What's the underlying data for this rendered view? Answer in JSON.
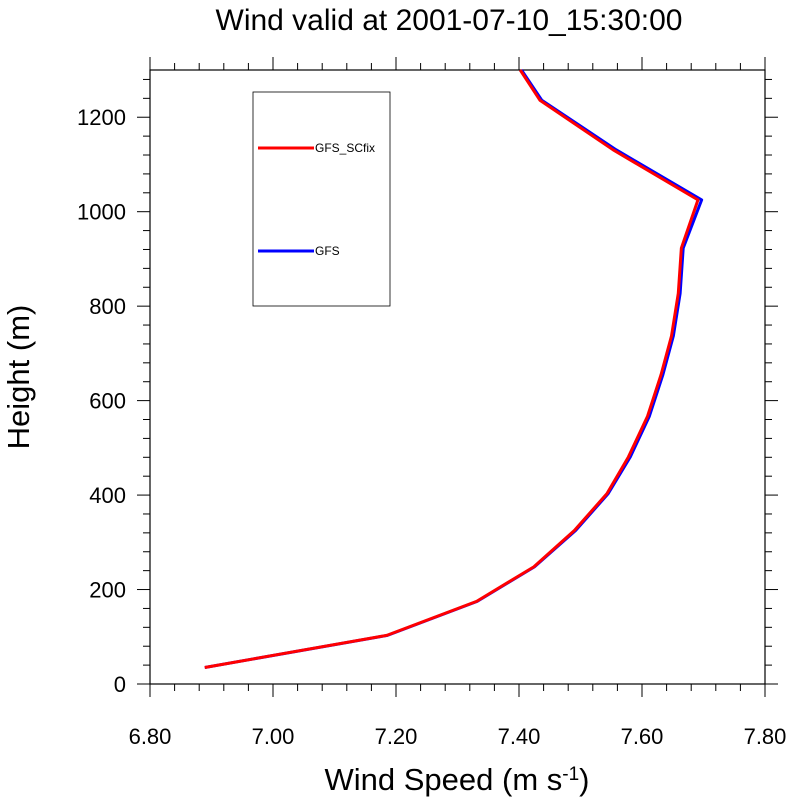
{
  "chart_data": {
    "type": "line",
    "title": "Wind valid at 2001-07-10_15:30:00",
    "xlabel": "Wind Speed (m s",
    "xlabel_superscript": "-1",
    "xlabel_suffix": ")",
    "ylabel": "Height (m)",
    "xlim": [
      6.8,
      7.8
    ],
    "ylim": [
      0,
      1300
    ],
    "x_ticks": [
      6.8,
      7.0,
      7.2,
      7.4,
      7.6,
      7.8
    ],
    "x_tick_labels": [
      "6.80",
      "7.00",
      "7.20",
      "7.40",
      "7.60",
      "7.80"
    ],
    "y_ticks": [
      0,
      200,
      400,
      600,
      800,
      1000,
      1200
    ],
    "y_tick_labels": [
      "0",
      "200",
      "400",
      "600",
      "800",
      "1000",
      "1200"
    ],
    "grid": false,
    "legend_placement": "top-left inside plot",
    "series": [
      {
        "name": "GFS",
        "color": "#0000ff",
        "points": [
          [
            6.889,
            35
          ],
          [
            7.186,
            103
          ],
          [
            7.332,
            175
          ],
          [
            7.425,
            248
          ],
          [
            7.492,
            325
          ],
          [
            7.545,
            403
          ],
          [
            7.581,
            481
          ],
          [
            7.612,
            567
          ],
          [
            7.634,
            655
          ],
          [
            7.651,
            737
          ],
          [
            7.662,
            827
          ],
          [
            7.667,
            923
          ],
          [
            7.697,
            1025
          ],
          [
            7.558,
            1131
          ],
          [
            7.437,
            1236
          ],
          [
            7.404,
            1300
          ]
        ]
      },
      {
        "name": "GFS_SCfix",
        "color": "#ff0000",
        "points": [
          [
            6.889,
            35
          ],
          [
            7.185,
            103
          ],
          [
            7.331,
            175
          ],
          [
            7.424,
            248
          ],
          [
            7.49,
            325
          ],
          [
            7.543,
            403
          ],
          [
            7.578,
            481
          ],
          [
            7.609,
            567
          ],
          [
            7.631,
            655
          ],
          [
            7.648,
            737
          ],
          [
            7.659,
            827
          ],
          [
            7.664,
            923
          ],
          [
            7.691,
            1025
          ],
          [
            7.553,
            1131
          ],
          [
            7.434,
            1236
          ],
          [
            7.402,
            1300
          ]
        ]
      }
    ],
    "legend": [
      {
        "name": "GFS_SCfix",
        "color": "#ff0000"
      },
      {
        "name": "GFS",
        "color": "#0000ff"
      }
    ]
  }
}
